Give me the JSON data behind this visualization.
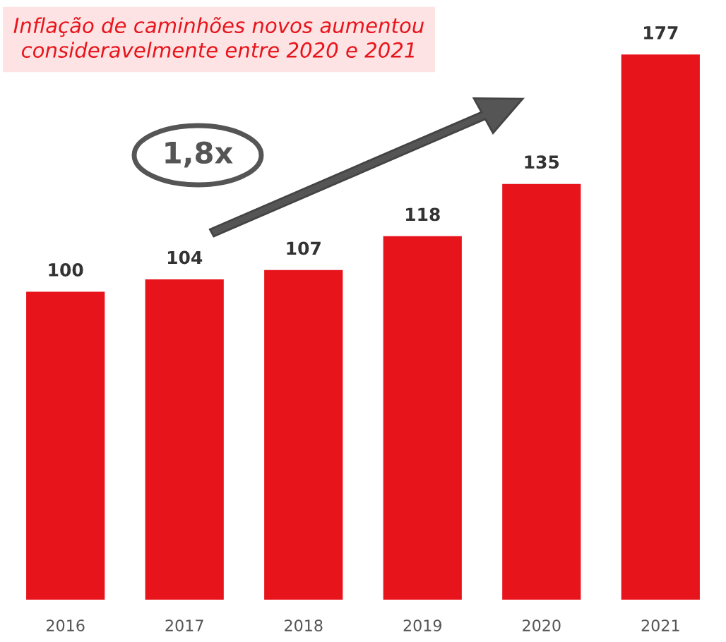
{
  "chart_data": {
    "type": "bar",
    "title": "Inflação de caminhões novos aumentou\nconsideravelmente entre 2020 e 2021",
    "categories": [
      "2016",
      "2017",
      "2018",
      "2019",
      "2020",
      "2021"
    ],
    "values": [
      100,
      104,
      107,
      118,
      135,
      177
    ],
    "color": "#e8141c",
    "data_labels": true,
    "tick_labels": "x",
    "grid": false,
    "legend": false,
    "annotations": [
      "1,8x"
    ]
  }
}
